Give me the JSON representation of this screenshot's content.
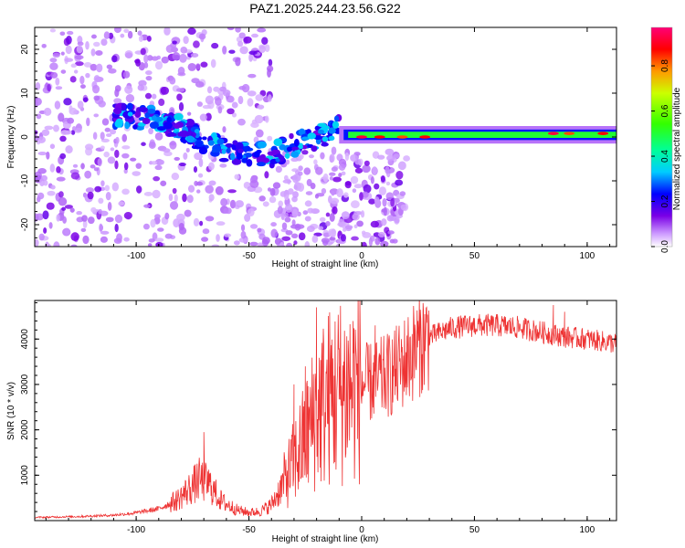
{
  "chart_data": [
    {
      "type": "heatmap",
      "title": "PAZ1.2025.244.23.56.G22",
      "xlabel": "Height of straight line (km)",
      "ylabel": "Frequency (Hz)",
      "xlim": [
        -145,
        113
      ],
      "ylim": [
        -25,
        25
      ],
      "xticks": [
        -100,
        -50,
        0,
        50,
        100
      ],
      "yticks": [
        -20,
        -10,
        0,
        10,
        20
      ],
      "colorbar": {
        "label": "Normalized spectral amplitude",
        "range": [
          0,
          0.97
        ],
        "ticks": [
          0.0,
          0.2,
          0.4,
          0.6,
          0.8
        ]
      },
      "ridge": [
        {
          "x": -145,
          "y": 8
        },
        {
          "x": -110,
          "y": 5
        },
        {
          "x": -100,
          "y": 4.5
        },
        {
          "x": -90,
          "y": 4
        },
        {
          "x": -80,
          "y": 2
        },
        {
          "x": -70,
          "y": -1
        },
        {
          "x": -60,
          "y": -3
        },
        {
          "x": -50,
          "y": -4
        },
        {
          "x": -40,
          "y": -4
        },
        {
          "x": -30,
          "y": -2
        },
        {
          "x": -20,
          "y": 0
        },
        {
          "x": -15,
          "y": 1
        },
        {
          "x": -10,
          "y": 2
        },
        {
          "x": -5,
          "y": 0.5
        },
        {
          "x": 0,
          "y": 0
        },
        {
          "x": 50,
          "y": 0.5
        },
        {
          "x": 113,
          "y": 0.8
        }
      ],
      "hot_spots": [
        {
          "x": 0,
          "y": 0,
          "amp": 0.95
        },
        {
          "x": 8,
          "y": 0,
          "amp": 0.9
        },
        {
          "x": 18,
          "y": 0,
          "amp": 0.85
        },
        {
          "x": 28,
          "y": 0,
          "amp": 0.9
        },
        {
          "x": 85,
          "y": 0.8,
          "amp": 0.95
        },
        {
          "x": 92,
          "y": 0.8,
          "amp": 0.85
        },
        {
          "x": 107,
          "y": 0.8,
          "amp": 0.9
        }
      ]
    },
    {
      "type": "line",
      "xlabel": "Height of straight line (km)",
      "ylabel": "SNR (10 * v/v)",
      "xlim": [
        -145,
        113
      ],
      "ylim": [
        0,
        4850
      ],
      "xticks": [
        -100,
        -50,
        0,
        50,
        100
      ],
      "yticks": [
        1000,
        2000,
        3000,
        4000
      ],
      "color": "#ee3333",
      "envelope": [
        {
          "x": -145,
          "y": 70
        },
        {
          "x": -125,
          "y": 90
        },
        {
          "x": -110,
          "y": 120
        },
        {
          "x": -100,
          "y": 170
        },
        {
          "x": -90,
          "y": 260
        },
        {
          "x": -82,
          "y": 450
        },
        {
          "x": -75,
          "y": 760
        },
        {
          "x": -72,
          "y": 900
        },
        {
          "x": -68,
          "y": 820
        },
        {
          "x": -62,
          "y": 420
        },
        {
          "x": -55,
          "y": 230
        },
        {
          "x": -50,
          "y": 180
        },
        {
          "x": -45,
          "y": 200
        },
        {
          "x": -40,
          "y": 350
        },
        {
          "x": -35,
          "y": 800
        },
        {
          "x": -30,
          "y": 1300
        },
        {
          "x": -25,
          "y": 1800
        },
        {
          "x": -20,
          "y": 2400
        },
        {
          "x": -15,
          "y": 2700
        },
        {
          "x": -10,
          "y": 2850
        },
        {
          "x": -5,
          "y": 2950
        },
        {
          "x": 0,
          "y": 3000
        },
        {
          "x": 5,
          "y": 3050
        },
        {
          "x": 10,
          "y": 3150
        },
        {
          "x": 15,
          "y": 3300
        },
        {
          "x": 20,
          "y": 3550
        },
        {
          "x": 25,
          "y": 3850
        },
        {
          "x": 30,
          "y": 4050
        },
        {
          "x": 35,
          "y": 4150
        },
        {
          "x": 40,
          "y": 4250
        },
        {
          "x": 50,
          "y": 4300
        },
        {
          "x": 60,
          "y": 4300
        },
        {
          "x": 70,
          "y": 4250
        },
        {
          "x": 80,
          "y": 4150
        },
        {
          "x": 90,
          "y": 4050
        },
        {
          "x": 100,
          "y": 4000
        },
        {
          "x": 113,
          "y": 3900
        }
      ],
      "spikes": [
        {
          "x": -70,
          "y": 1950
        },
        {
          "x": -30,
          "y": 3000
        },
        {
          "x": -25,
          "y": 3400
        },
        {
          "x": -20,
          "y": 4700
        },
        {
          "x": -10,
          "y": 3800
        },
        {
          "x": 6,
          "y": 4300
        },
        {
          "x": 85,
          "y": 4750
        },
        {
          "x": 90,
          "y": 4600
        }
      ]
    }
  ]
}
